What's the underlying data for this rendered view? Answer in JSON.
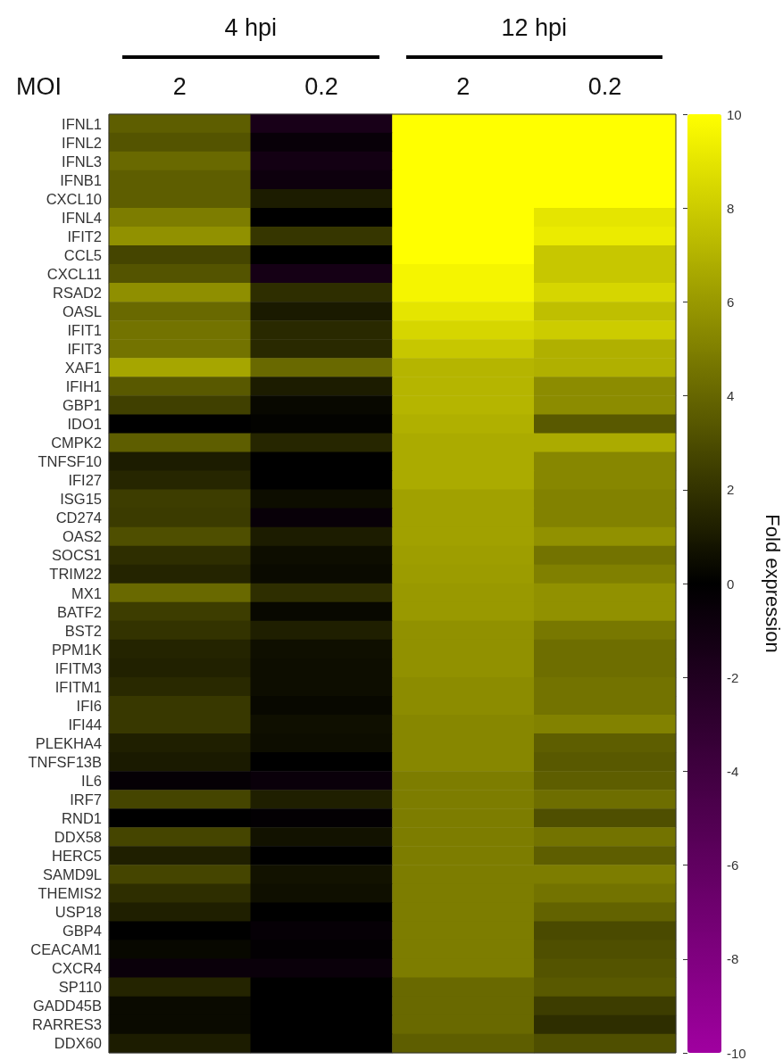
{
  "chart_data": {
    "type": "heatmap",
    "categories": [
      "2",
      "0.2",
      "2",
      "0.2"
    ],
    "xlabel": "MOI",
    "clabel": "Fold expression",
    "annotations": [
      "4 hpi",
      "12 hpi"
    ],
    "y_categories": [
      "IFNL1",
      "IFNL2",
      "IFNL3",
      "IFNB1",
      "CXCL10",
      "IFNL4",
      "IFIT2",
      "CCL5",
      "CXCL11",
      "RSAD2",
      "OASL",
      "IFIT1",
      "IFIT3",
      "XAF1",
      "IFIH1",
      "GBP1",
      "IDO1",
      "CMPK2",
      "TNFSF10",
      "IFI27",
      "ISG15",
      "CD274",
      "OAS2",
      "SOCS1",
      "TRIM22",
      "MX1",
      "BATF2",
      "BST2",
      "PPM1K",
      "IFITM3",
      "IFITM1",
      "IFI6",
      "IFI44",
      "PLEKHA4",
      "TNFSF13B",
      "IL6",
      "IRF7",
      "RND1",
      "DDX58",
      "HERC5",
      "SAMD9L",
      "THEMIS2",
      "USP18",
      "GBP4",
      "CEACAM1",
      "CXCR4",
      "SP110",
      "GADD45B",
      "RARRES3",
      "DDX60"
    ],
    "cells": [
      [
        3.7,
        -1.5,
        10,
        10
      ],
      [
        3.3,
        -0.5,
        10,
        10
      ],
      [
        4.1,
        -1.2,
        10,
        10
      ],
      [
        3.7,
        -0.8,
        10,
        10
      ],
      [
        3.7,
        1.1,
        10,
        10
      ],
      [
        4.9,
        0,
        10,
        9
      ],
      [
        5.7,
        2.1,
        10,
        9.2
      ],
      [
        2.7,
        0,
        10,
        7.8
      ],
      [
        3.3,
        -1.3,
        9.6,
        7.8
      ],
      [
        5.6,
        1.8,
        9.6,
        8.4
      ],
      [
        4.1,
        1,
        9,
        7.5
      ],
      [
        4.5,
        1.6,
        8.4,
        8
      ],
      [
        4.5,
        1.6,
        7.8,
        6.9
      ],
      [
        6.5,
        4.1,
        7.1,
        6.9
      ],
      [
        3.5,
        1.1,
        7.1,
        5.5
      ],
      [
        2.5,
        0.3,
        7.1,
        5.5
      ],
      [
        0,
        0.1,
        6.9,
        3.5
      ],
      [
        3.7,
        1.5,
        6.7,
        6.7
      ],
      [
        1.1,
        0,
        6.7,
        5.3
      ],
      [
        1.5,
        0,
        6.7,
        5.3
      ],
      [
        2.4,
        0.5,
        6.3,
        5.1
      ],
      [
        2.3,
        -0.5,
        6.3,
        5.1
      ],
      [
        3.1,
        1.1,
        6.3,
        5.7
      ],
      [
        1.8,
        0.5,
        6.2,
        4.5
      ],
      [
        1.4,
        0.4,
        6.1,
        5
      ],
      [
        4.1,
        1.8,
        6,
        5.7
      ],
      [
        2.4,
        0.3,
        6,
        5.7
      ],
      [
        2,
        1.2,
        5.7,
        4.7
      ],
      [
        1.4,
        0.6,
        5.7,
        4.3
      ],
      [
        1.3,
        0.5,
        5.7,
        4.3
      ],
      [
        1.6,
        0.5,
        5.5,
        4.5
      ],
      [
        2.2,
        0.3,
        5.5,
        4.5
      ],
      [
        2.2,
        0.6,
        5.3,
        5.1
      ],
      [
        1.2,
        0.5,
        5.3,
        3.7
      ],
      [
        1,
        0,
        5.3,
        3.5
      ],
      [
        -0.3,
        -0.6,
        4.9,
        3.7
      ],
      [
        2.7,
        1.2,
        4.9,
        4.3
      ],
      [
        0,
        -0.2,
        4.9,
        3.1
      ],
      [
        2.7,
        0.7,
        4.9,
        4.5
      ],
      [
        1.2,
        0,
        4.9,
        3.7
      ],
      [
        2.7,
        0.7,
        4.9,
        4.9
      ],
      [
        1.8,
        0.6,
        4.9,
        4.5
      ],
      [
        1.2,
        0,
        4.9,
        3.9
      ],
      [
        0,
        -0.4,
        4.9,
        2.9
      ],
      [
        0.3,
        -0.2,
        4.9,
        3.1
      ],
      [
        -0.6,
        -0.6,
        4.9,
        3.3
      ],
      [
        1.4,
        0,
        4.1,
        3.5
      ],
      [
        0.4,
        0,
        4.1,
        2.4
      ],
      [
        0.4,
        0,
        4.1,
        1.8
      ],
      [
        1.1,
        0,
        3.7,
        3.1
      ]
    ],
    "clim": [
      -10,
      10
    ],
    "cticks": [
      -10,
      -8,
      -6,
      -4,
      -2,
      0,
      2,
      4,
      6,
      8,
      10
    ]
  }
}
